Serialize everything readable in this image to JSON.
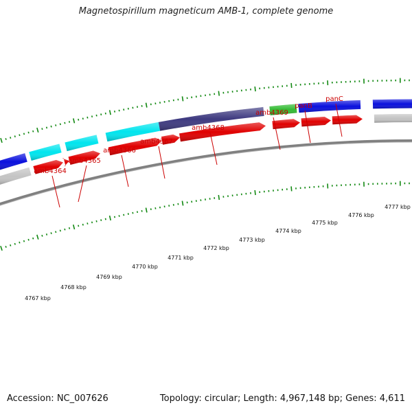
{
  "title": "Magnetospirillum magneticum AMB-1, complete genome",
  "footer": {
    "accession": "Accession: NC_007626",
    "summary": "Topology: circular; Length: 4,967,148 bp; Genes: 4,611"
  },
  "colors": {
    "backbone": "#808080",
    "cds_forward": "#e00000",
    "gene_cyan": "#00e5ee",
    "gene_purple": "#3e3a80",
    "gene_green": "#33bb33",
    "gene_blue": "#0a10dd",
    "gene_grey": "#c4c4c4",
    "tick_green": "#118811",
    "label_red": "#cc0000"
  },
  "gene_labels": [
    "amb4364",
    "amb4365",
    "amb4366",
    "amb4367",
    "amb4368",
    "amb4369",
    "panB",
    "panC"
  ],
  "kbp_labels": [
    "4767 kbp",
    "4768 kbp",
    "4769 kbp",
    "4770 kbp",
    "4771 kbp",
    "4772 kbp",
    "4773 kbp",
    "4774 kbp",
    "4775 kbp",
    "4776 kbp",
    "4777 kbp"
  ]
}
